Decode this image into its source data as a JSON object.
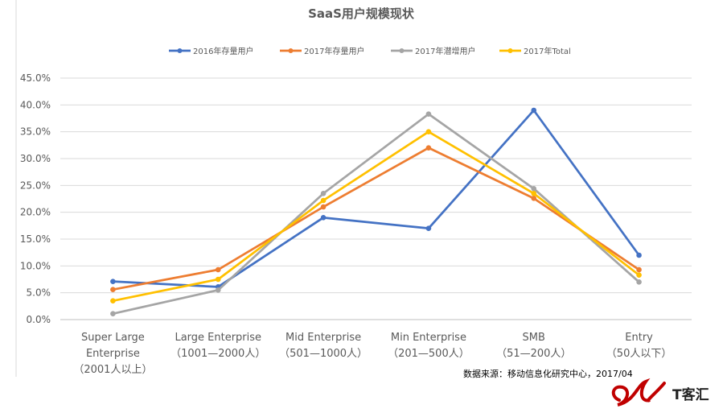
{
  "chart_data": {
    "type": "line",
    "title": "SaaS用户规模现状",
    "categories": [
      [
        "Super Large",
        "Enterprise",
        "（2001人以上）"
      ],
      [
        "Large Enterprise",
        "（1001—2000人）"
      ],
      [
        "Mid  Enterprise",
        "（501—1000人）"
      ],
      [
        "Min Enterprise",
        "（201—500人）"
      ],
      [
        "SMB",
        "（51—200人）"
      ],
      [
        "Entry",
        "（50人以下）"
      ]
    ],
    "series": [
      {
        "name": "2016年存量用户",
        "color": "#4472C4",
        "values": [
          0.071,
          0.061,
          0.19,
          0.17,
          0.39,
          0.12
        ]
      },
      {
        "name": "2017年存量用户",
        "color": "#ED7D31",
        "values": [
          0.056,
          0.093,
          0.21,
          0.32,
          0.226,
          0.093
        ]
      },
      {
        "name": "2017年潜增用户",
        "color": "#A5A5A5",
        "values": [
          0.011,
          0.055,
          0.235,
          0.383,
          0.244,
          0.07
        ]
      },
      {
        "name": "2017年Total",
        "color": "#FFC000",
        "values": [
          0.035,
          0.075,
          0.222,
          0.35,
          0.235,
          0.083
        ]
      }
    ],
    "yticks": [
      "0.0%",
      "5.0%",
      "10.0%",
      "15.0%",
      "20.0%",
      "25.0%",
      "30.0%",
      "35.0%",
      "40.0%",
      "45.0%"
    ],
    "ylim": [
      0,
      0.45
    ],
    "grid": true,
    "legend_position": "top"
  },
  "source_note": "数据来源：移动信息化研究中心，2017/04",
  "logo_text": "T客汇"
}
